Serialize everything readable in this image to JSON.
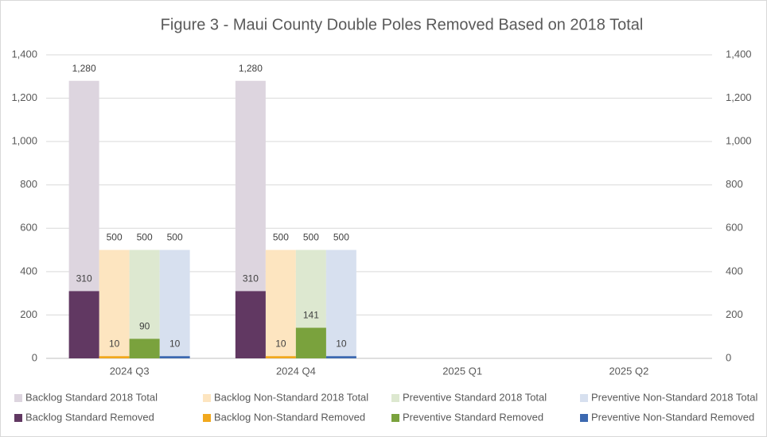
{
  "chart_data": {
    "type": "bar",
    "title": "Figure 3 - Maui County Double Poles Removed Based on 2018 Total",
    "categories": [
      "2024 Q3",
      "2024 Q4",
      "2025 Q1",
      "2025 Q2"
    ],
    "series": [
      {
        "name": "Backlog Standard 2018 Total",
        "color": "#ddd5df",
        "values": [
          1280,
          1280,
          null,
          null
        ],
        "value_labels": [
          "1,280",
          "1,280",
          null,
          null
        ]
      },
      {
        "name": "Backlog Non-Standard 2018 Total",
        "color": "#fde5c0",
        "values": [
          500,
          500,
          null,
          null
        ]
      },
      {
        "name": "Preventive Standard 2018 Total",
        "color": "#dde8d0",
        "values": [
          500,
          500,
          null,
          null
        ]
      },
      {
        "name": "Preventive Non-Standard 2018 Total",
        "color": "#d7e0ef",
        "values": [
          500,
          500,
          null,
          null
        ]
      },
      {
        "name": "Backlog Standard Removed",
        "color": "#613862",
        "axis": "y2",
        "values": [
          310,
          310,
          null,
          null
        ]
      },
      {
        "name": "Backlog Non-Standard Removed",
        "color": "#f1a81d",
        "axis": "y2",
        "values": [
          10,
          10,
          null,
          null
        ]
      },
      {
        "name": "Preventive Standard Removed",
        "color": "#7aa23d",
        "axis": "y2",
        "values": [
          90,
          141,
          null,
          null
        ]
      },
      {
        "name": "Preventive Non-Standard Removed",
        "color": "#3c69b0",
        "axis": "y2",
        "values": [
          10,
          10,
          null,
          null
        ]
      }
    ],
    "ylim": [
      0,
      1400
    ],
    "yticks": [
      0,
      200,
      400,
      600,
      800,
      {
        "value": 1000,
        "label": "1,000"
      },
      {
        "value": 1200,
        "label": "1,200"
      },
      {
        "value": 1400,
        "label": "1,400"
      }
    ],
    "y2lim": [
      0,
      1400
    ],
    "y2ticks": [
      0,
      200,
      400,
      600,
      800,
      {
        "value": 1000,
        "label": "1,000"
      },
      {
        "value": 1200,
        "label": "1,200"
      },
      {
        "value": 1400,
        "label": "1,400"
      }
    ],
    "grid": true,
    "legend": "bottom"
  }
}
